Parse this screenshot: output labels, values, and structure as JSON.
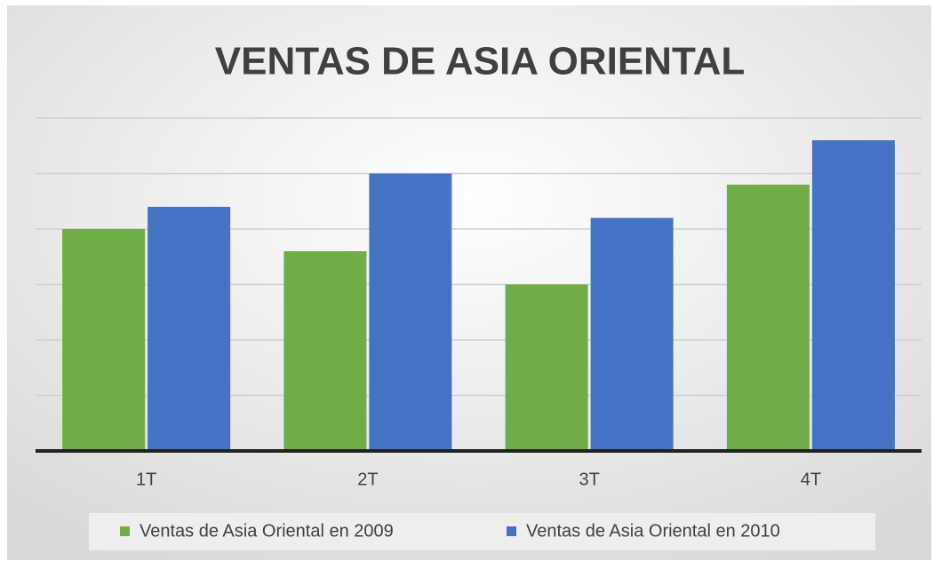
{
  "chart_data": {
    "type": "bar",
    "title": "VENTAS DE ASIA ORIENTAL",
    "categories": [
      "1T",
      "2T",
      "3T",
      "4T"
    ],
    "series": [
      {
        "name": "Ventas de Asia Oriental en 2009",
        "color": "#70ad47",
        "values": [
          4.0,
          3.6,
          3.0,
          4.8
        ]
      },
      {
        "name": "Ventas de Asia Oriental en 2010",
        "color": "#4472c4",
        "values": [
          4.4,
          5.0,
          4.2,
          5.6
        ]
      }
    ],
    "ylim": [
      0,
      6
    ],
    "yticks": [
      0,
      1,
      2,
      3,
      4,
      5,
      6
    ],
    "grid": true,
    "legend": "bottom"
  }
}
